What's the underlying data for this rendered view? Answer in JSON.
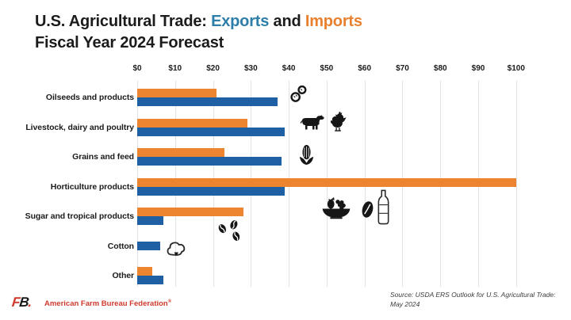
{
  "header": {
    "title_prefix": "U.S. Agricultural Trade: ",
    "exports_word": "Exports",
    "and_word": " and ",
    "imports_word": "Imports",
    "title_line2": "Fiscal Year 2024 Forecast"
  },
  "colors": {
    "exports_word": "#2d7ea9",
    "imports_word": "#e8802e",
    "exports_bar": "#1f5fa3",
    "imports_bar": "#ec8430",
    "gridline": "#dfe2e6",
    "footer_red": "#cf3a2d",
    "text": "#1b1b1b"
  },
  "chart_data": {
    "type": "bar",
    "orientation": "horizontal",
    "title": "U.S. Agricultural Trade: Exports and Imports — Fiscal Year 2024 Forecast",
    "unit": "billion U.S. dollars",
    "axis_ticks": [
      "$0",
      "$10",
      "$20",
      "$30",
      "$40",
      "$50",
      "$60",
      "$70",
      "$80",
      "$90",
      "$100"
    ],
    "xlim": [
      0,
      100
    ],
    "grid": true,
    "legend_position": "in-title",
    "categories": [
      "Oilseeds and products",
      "Livestock, dairy and poultry",
      "Grains and feed",
      "Horticulture products",
      "Sugar and tropical products",
      "Cotton",
      "Other"
    ],
    "series": [
      {
        "name": "Imports",
        "color": "#ec8430",
        "values": [
          21,
          29,
          23,
          100,
          28,
          0,
          4
        ]
      },
      {
        "name": "Exports",
        "color": "#1f5fa3",
        "values": [
          37,
          39,
          38,
          39,
          7,
          6,
          7
        ]
      }
    ],
    "category_icons": [
      [
        "peanut"
      ],
      [
        "cow",
        "rooster"
      ],
      [
        "corn"
      ],
      [
        "fruit-basket",
        "almond",
        "bottle"
      ],
      [
        "coffee-beans"
      ],
      [
        "cotton"
      ],
      []
    ]
  },
  "footer": {
    "logo_f": "F",
    "logo_b": "B",
    "logo_dot": ".",
    "org_name": "American Farm Bureau Federation",
    "reg_mark": "®",
    "source_line1": "Source: USDA ERS Outlook for U.S. Agricultural Trade:",
    "source_line2": "May 2024"
  }
}
